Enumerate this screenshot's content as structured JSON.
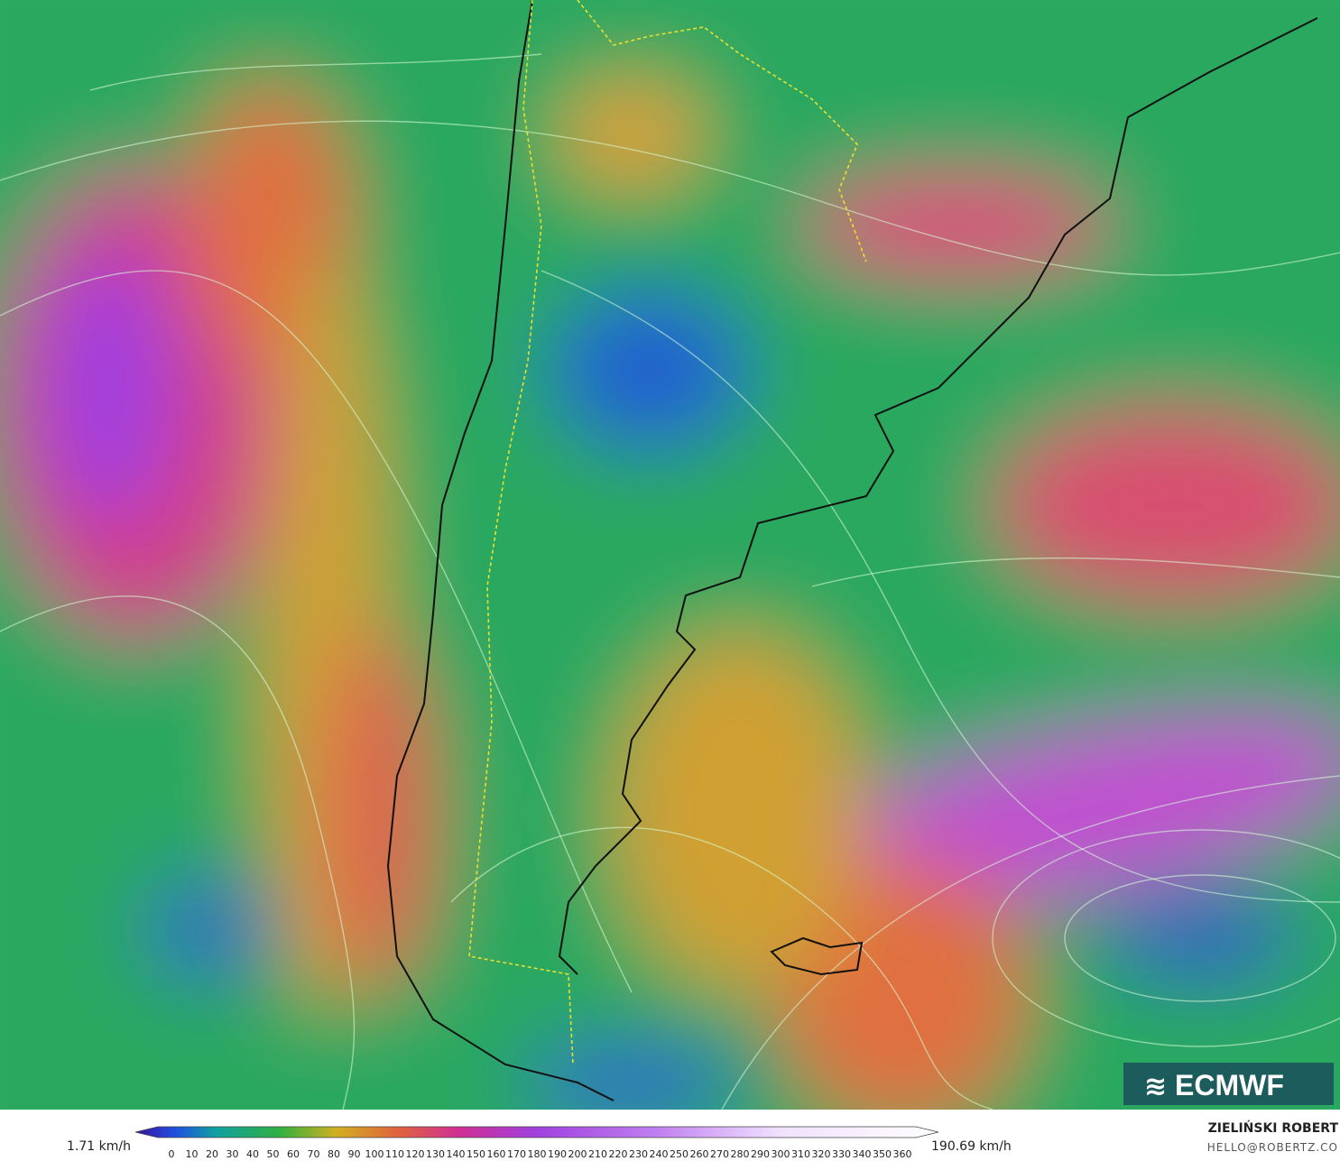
{
  "colorbar": {
    "min_label": "1.71 km/h",
    "max_label": "190.69 km/h",
    "ticks": [
      0,
      10,
      20,
      30,
      40,
      50,
      60,
      70,
      80,
      90,
      100,
      110,
      120,
      130,
      140,
      150,
      160,
      170,
      180,
      190,
      200,
      210,
      220,
      230,
      240,
      250,
      260,
      270,
      280,
      290,
      300,
      310,
      320,
      330,
      340,
      350,
      360
    ]
  },
  "logo": "ECMWF",
  "credit": {
    "name": "ZIELIŃSKI ROBERT",
    "email": "HELLO@ROBERTZ.CO"
  }
}
